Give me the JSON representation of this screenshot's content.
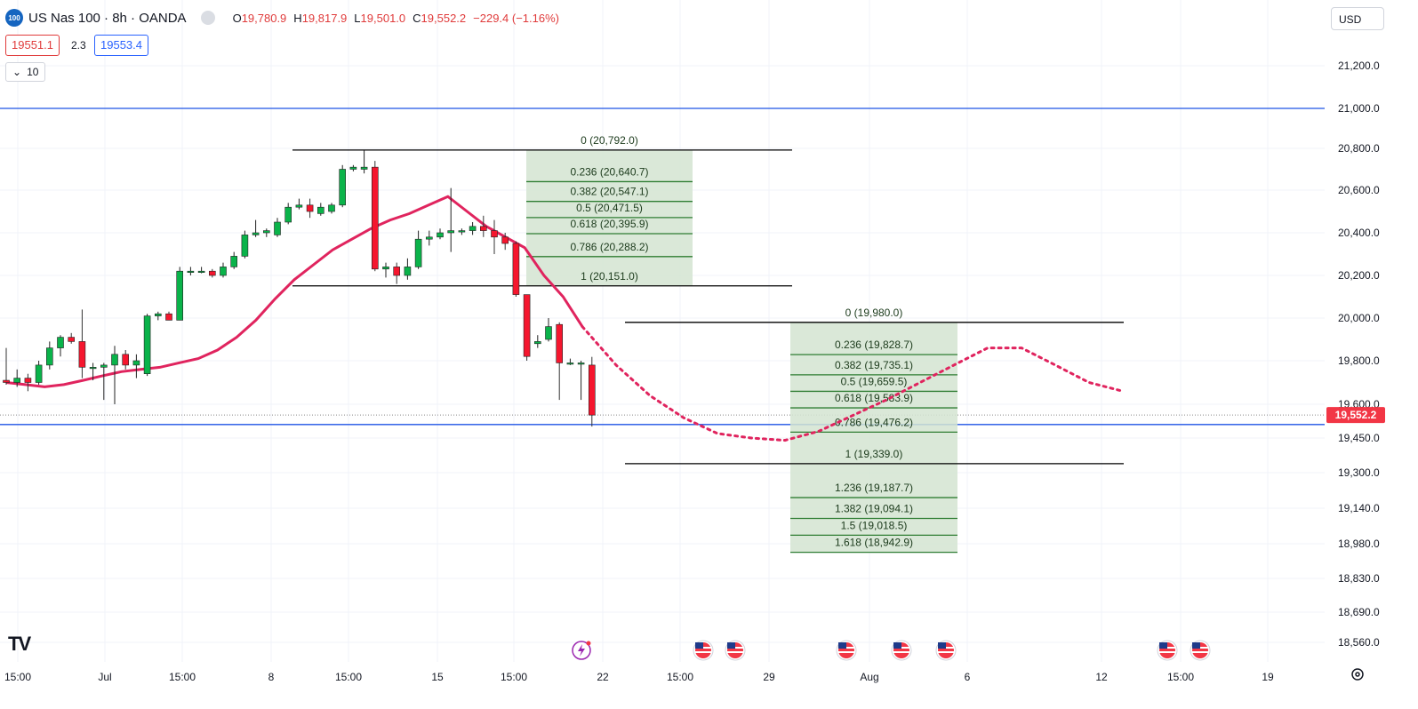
{
  "header": {
    "symbol_logo": "100",
    "title": "US Nas 100 · 8h · OANDA",
    "ohlc": {
      "open_label": "O",
      "open": "19,780.9",
      "high_label": "H",
      "high": "19,817.9",
      "low_label": "L",
      "low": "19,501.0",
      "close_label": "C",
      "close": "19,552.2",
      "change": "−229.4 (−1.16%)"
    },
    "sell_price": "19551.1",
    "spread": "2.3",
    "buy_price": "19553.4",
    "indicator_count": "10"
  },
  "currency_select": "USD",
  "colors": {
    "bull": "#089981",
    "bull_fill": "#089981",
    "bear": "#f23645",
    "ma": "#e0245e",
    "blue_line": "#1e53e5",
    "fib_fill": "#d3e4d1",
    "fib_line": "#2e7d32",
    "fib_text": "#1b5e20",
    "grid": "#f0f3fa"
  },
  "price_axis": {
    "ticks": [
      {
        "label": "21,200.0",
        "value": 21200
      },
      {
        "label": "21,000.0",
        "value": 21000
      },
      {
        "label": "20,800.0",
        "value": 20800
      },
      {
        "label": "20,600.0",
        "value": 20600
      },
      {
        "label": "20,400.0",
        "value": 20400
      },
      {
        "label": "20,200.0",
        "value": 20200
      },
      {
        "label": "20,000.0",
        "value": 20000
      },
      {
        "label": "19,800.0",
        "value": 19800
      },
      {
        "label": "19,600.0",
        "value": 19600
      },
      {
        "label": "19,450.0",
        "value": 19450
      },
      {
        "label": "19,300.0",
        "value": 19300
      },
      {
        "label": "19,140.0",
        "value": 19140
      },
      {
        "label": "18,980.0",
        "value": 18980
      },
      {
        "label": "18,830.0",
        "value": 18830
      },
      {
        "label": "18,690.0",
        "value": 18690
      },
      {
        "label": "18,560.0",
        "value": 18560
      }
    ],
    "current_price_label": "19,552.2",
    "current_price": 19552.2
  },
  "time_axis": [
    "15:00",
    "Jul",
    "15:00",
    "8",
    "15:00",
    "15",
    "15:00",
    "22",
    "15:00",
    "29",
    "Aug",
    "6",
    "12",
    "15:00",
    "19"
  ],
  "horizontal_lines": [
    21000,
    19510
  ],
  "fib1": {
    "labels": [
      "0 (20,792.0)",
      "0.236 (20,640.7)",
      "0.382 (20,547.1)",
      "0.5 (20,471.5)",
      "0.618 (20,395.9)",
      "0.786 (20,288.2)",
      "1 (20,151.0)"
    ]
  },
  "fib2": {
    "labels": [
      "0 (19,980.0)",
      "0.236 (19,828.7)",
      "0.382 (19,735.1)",
      "0.5 (19,659.5)",
      "0.618 (19,583.9)",
      "0.786 (19,476.2)",
      "1 (19,339.0)",
      "1.236 (19,187.7)",
      "1.382 (19,094.1)",
      "1.5 (19,018.5)",
      "1.618 (18,942.9)"
    ]
  },
  "chart_data": {
    "type": "candlestick",
    "symbol": "US Nas 100",
    "interval": "8h",
    "candles": [
      {
        "o": 19710,
        "h": 19860,
        "l": 19690,
        "c": 19700
      },
      {
        "o": 19700,
        "h": 19760,
        "l": 19680,
        "c": 19720
      },
      {
        "o": 19720,
        "h": 19740,
        "l": 19660,
        "c": 19700
      },
      {
        "o": 19700,
        "h": 19800,
        "l": 19690,
        "c": 19780
      },
      {
        "o": 19780,
        "h": 19890,
        "l": 19760,
        "c": 19860
      },
      {
        "o": 19860,
        "h": 19920,
        "l": 19820,
        "c": 19910
      },
      {
        "o": 19910,
        "h": 19930,
        "l": 19880,
        "c": 19890
      },
      {
        "o": 19890,
        "h": 20040,
        "l": 19720,
        "c": 19770
      },
      {
        "o": 19770,
        "h": 19790,
        "l": 19710,
        "c": 19770
      },
      {
        "o": 19770,
        "h": 19790,
        "l": 19620,
        "c": 19780
      },
      {
        "o": 19780,
        "h": 19870,
        "l": 19600,
        "c": 19830
      },
      {
        "o": 19830,
        "h": 19850,
        "l": 19760,
        "c": 19780
      },
      {
        "o": 19780,
        "h": 19830,
        "l": 19720,
        "c": 19800
      },
      {
        "o": 19740,
        "h": 20020,
        "l": 19730,
        "c": 20010
      },
      {
        "o": 20010,
        "h": 20030,
        "l": 19990,
        "c": 20020
      },
      {
        "o": 20020,
        "h": 20030,
        "l": 19990,
        "c": 19990
      },
      {
        "o": 19990,
        "h": 20240,
        "l": 19990,
        "c": 20220
      },
      {
        "o": 20220,
        "h": 20240,
        "l": 20200,
        "c": 20220
      },
      {
        "o": 20220,
        "h": 20240,
        "l": 20210,
        "c": 20220
      },
      {
        "o": 20220,
        "h": 20230,
        "l": 20190,
        "c": 20200
      },
      {
        "o": 20200,
        "h": 20260,
        "l": 20190,
        "c": 20240
      },
      {
        "o": 20240,
        "h": 20310,
        "l": 20230,
        "c": 20290
      },
      {
        "o": 20290,
        "h": 20410,
        "l": 20280,
        "c": 20390
      },
      {
        "o": 20390,
        "h": 20460,
        "l": 20380,
        "c": 20400
      },
      {
        "o": 20400,
        "h": 20420,
        "l": 20380,
        "c": 20410
      },
      {
        "o": 20390,
        "h": 20470,
        "l": 20380,
        "c": 20450
      },
      {
        "o": 20450,
        "h": 20540,
        "l": 20440,
        "c": 20520
      },
      {
        "o": 20520,
        "h": 20560,
        "l": 20510,
        "c": 20530
      },
      {
        "o": 20530,
        "h": 20560,
        "l": 20470,
        "c": 20500
      },
      {
        "o": 20490,
        "h": 20540,
        "l": 20480,
        "c": 20520
      },
      {
        "o": 20500,
        "h": 20540,
        "l": 20490,
        "c": 20530
      },
      {
        "o": 20530,
        "h": 20720,
        "l": 20520,
        "c": 20700
      },
      {
        "o": 20700,
        "h": 20720,
        "l": 20690,
        "c": 20710
      },
      {
        "o": 20700,
        "h": 20790,
        "l": 20680,
        "c": 20710
      },
      {
        "o": 20710,
        "h": 20740,
        "l": 20220,
        "c": 20230
      },
      {
        "o": 20230,
        "h": 20260,
        "l": 20190,
        "c": 20240
      },
      {
        "o": 20240,
        "h": 20260,
        "l": 20160,
        "c": 20200
      },
      {
        "o": 20200,
        "h": 20280,
        "l": 20180,
        "c": 20240
      },
      {
        "o": 20240,
        "h": 20410,
        "l": 20230,
        "c": 20370
      },
      {
        "o": 20370,
        "h": 20410,
        "l": 20340,
        "c": 20380
      },
      {
        "o": 20380,
        "h": 20420,
        "l": 20370,
        "c": 20400
      },
      {
        "o": 20400,
        "h": 20610,
        "l": 20310,
        "c": 20410
      },
      {
        "o": 20410,
        "h": 20420,
        "l": 20390,
        "c": 20410
      },
      {
        "o": 20410,
        "h": 20450,
        "l": 20390,
        "c": 20430
      },
      {
        "o": 20430,
        "h": 20480,
        "l": 20380,
        "c": 20410
      },
      {
        "o": 20410,
        "h": 20460,
        "l": 20300,
        "c": 20380
      },
      {
        "o": 20380,
        "h": 20400,
        "l": 20320,
        "c": 20350
      },
      {
        "o": 20350,
        "h": 20360,
        "l": 20100,
        "c": 20110
      },
      {
        "o": 20110,
        "h": 20110,
        "l": 19800,
        "c": 19820
      },
      {
        "o": 19880,
        "h": 19920,
        "l": 19860,
        "c": 19890
      },
      {
        "o": 19900,
        "h": 20000,
        "l": 19890,
        "c": 19960
      },
      {
        "o": 19970,
        "h": 19980,
        "l": 19620,
        "c": 19790
      },
      {
        "o": 19790,
        "h": 19810,
        "l": 19780,
        "c": 19790
      },
      {
        "o": 19790,
        "h": 19800,
        "l": 19620,
        "c": 19790
      },
      {
        "o": 19780,
        "h": 19818,
        "l": 19501,
        "c": 19552
      }
    ],
    "ma_line": [
      19700,
      19690,
      19680,
      19690,
      19710,
      19730,
      19750,
      19760,
      19770,
      19790,
      19810,
      19850,
      19910,
      19990,
      20090,
      20180,
      20250,
      20320,
      20370,
      20420,
      20460,
      20490,
      20530,
      20570,
      20500,
      20430,
      20380,
      20330,
      20200,
      20100,
      19960
    ],
    "projection_path": [
      19960,
      19780,
      19640,
      19540,
      19470,
      19450,
      19440,
      19480,
      19550,
      19620,
      19700,
      19780,
      19860,
      19860,
      19780,
      19700,
      19660
    ]
  },
  "event_icons": [
    "lightning-event",
    "us-flag-event-1",
    "us-flag-event-2",
    "us-flag-event-3",
    "us-flag-event-4",
    "us-flag-event-5",
    "us-flag-event-6",
    "us-flag-event-7"
  ]
}
